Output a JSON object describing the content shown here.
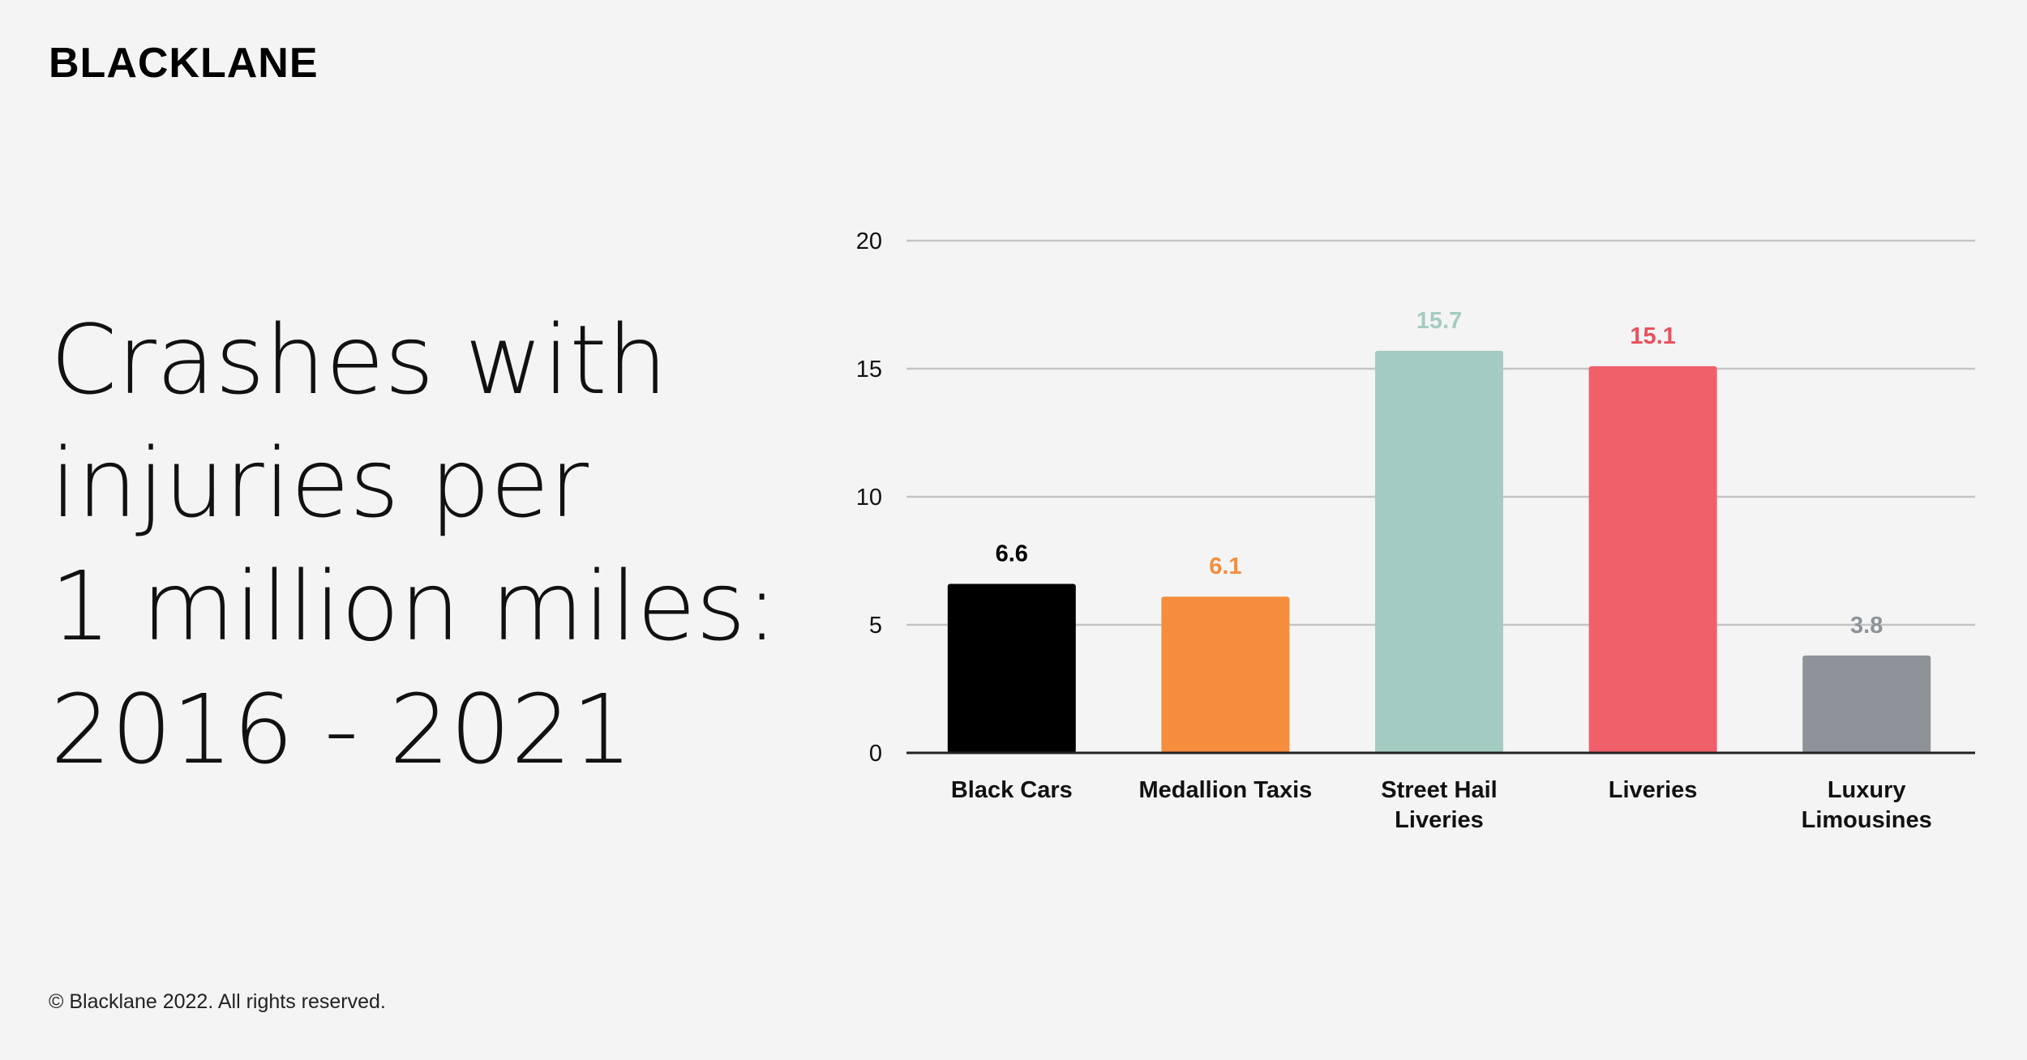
{
  "brand": "BLACKLANE",
  "headline": [
    "Crashes with",
    "injuries per",
    "1 million miles:",
    "2016 - 2021"
  ],
  "footer": "© Blacklane 2022. All rights reserved.",
  "chart_data": {
    "type": "bar",
    "categories": [
      [
        "Black Cars"
      ],
      [
        "Medallion Taxis"
      ],
      [
        "Street Hail",
        "Liveries"
      ],
      [
        "Liveries"
      ],
      [
        "Luxury",
        "Limousines"
      ]
    ],
    "values": [
      6.6,
      6.1,
      15.7,
      15.1,
      3.8
    ],
    "value_labels": [
      "6.6",
      "6.1",
      "15.7",
      "15.1",
      "3.8"
    ],
    "colors": [
      "#000000",
      "#f58d3c",
      "#a4cbc1",
      "#f0606b",
      "#8e9299"
    ],
    "value_label_colors": [
      "#000000",
      "#f58d3c",
      "#a4cbc1",
      "#e9505d",
      "#8e9299"
    ],
    "y_ticks": [
      0,
      5,
      10,
      15,
      20
    ],
    "ylim": [
      0,
      20
    ],
    "grid": true
  }
}
